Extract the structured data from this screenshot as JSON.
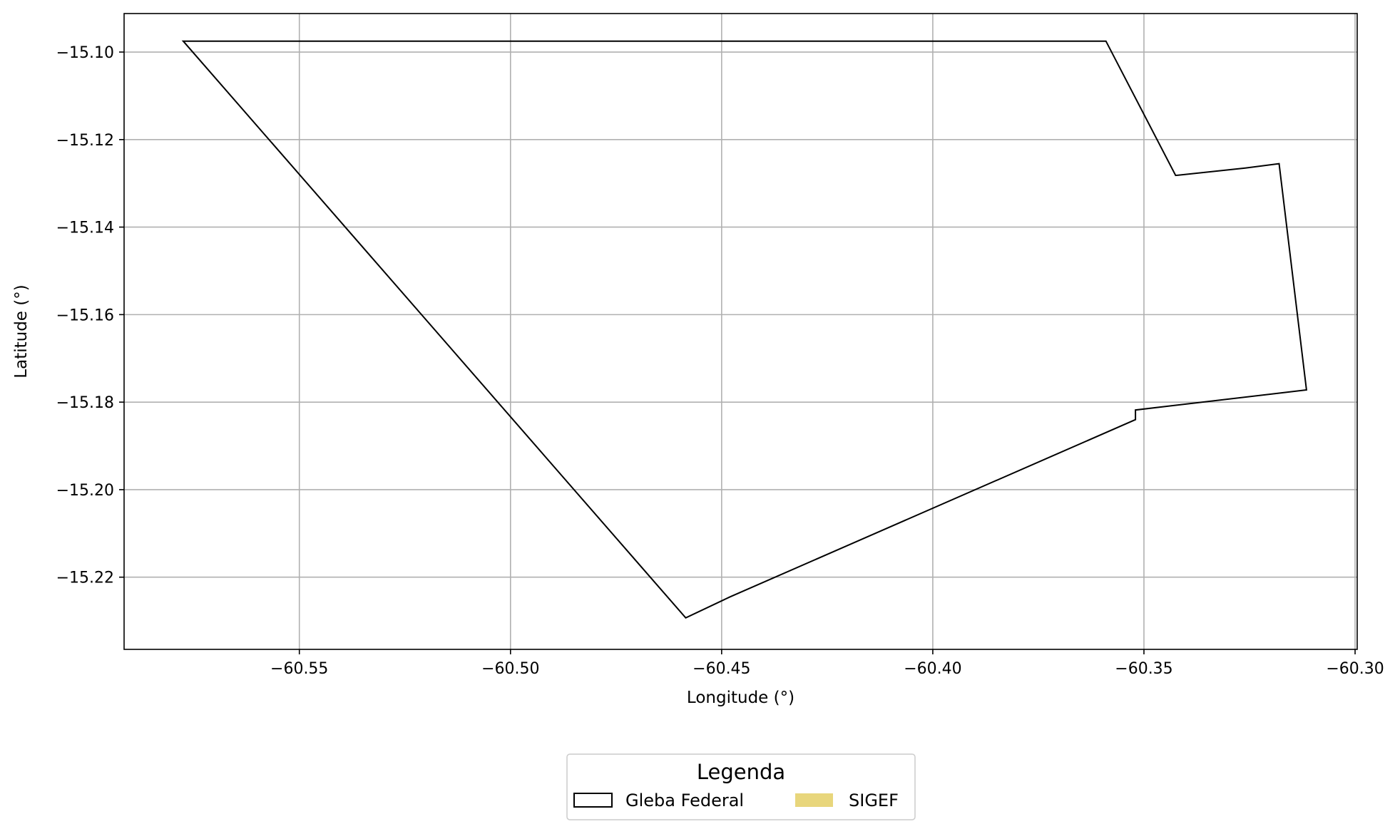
{
  "chart_data": {
    "type": "map",
    "xlabel": "Longitude (°)",
    "ylabel": "Latitude (°)",
    "xlim": [
      -60.5915,
      -60.2995
    ],
    "ylim": [
      -15.2365,
      -15.0912
    ],
    "grid": true,
    "x_ticks": [
      {
        "value": -60.55,
        "label": "−60.55"
      },
      {
        "value": -60.5,
        "label": "−60.50"
      },
      {
        "value": -60.45,
        "label": "−60.45"
      },
      {
        "value": -60.4,
        "label": "−60.40"
      },
      {
        "value": -60.35,
        "label": "−60.35"
      },
      {
        "value": -60.3,
        "label": "−60.30"
      }
    ],
    "y_ticks": [
      {
        "value": -15.1,
        "label": "−15.10"
      },
      {
        "value": -15.12,
        "label": "−15.12"
      },
      {
        "value": -15.14,
        "label": "−15.14"
      },
      {
        "value": -15.16,
        "label": "−15.16"
      },
      {
        "value": -15.18,
        "label": "−15.18"
      },
      {
        "value": -15.2,
        "label": "−15.20"
      },
      {
        "value": -15.22,
        "label": "−15.22"
      }
    ],
    "polygons": [
      {
        "name": "Gleba Federal",
        "stroke": "#000000",
        "fill": "none",
        "coordinates": [
          [
            -60.5775,
            -15.0975
          ],
          [
            -60.359,
            -15.0975
          ],
          [
            -60.3425,
            -15.1282
          ],
          [
            -60.326,
            -15.1265
          ],
          [
            -60.318,
            -15.1255
          ],
          [
            -60.3115,
            -15.1772
          ],
          [
            -60.352,
            -15.1818
          ],
          [
            -60.352,
            -15.184
          ],
          [
            -60.448,
            -15.2245
          ],
          [
            -60.4585,
            -15.2293
          ],
          [
            -60.5775,
            -15.0975
          ]
        ]
      }
    ],
    "legend": {
      "title": "Legenda",
      "placement": "bottom-center",
      "entries": [
        {
          "label": "Gleba Federal",
          "style": "outline",
          "color": "#000000"
        },
        {
          "label": "SIGEF",
          "style": "fill",
          "color": "#e8d67c"
        }
      ]
    }
  }
}
